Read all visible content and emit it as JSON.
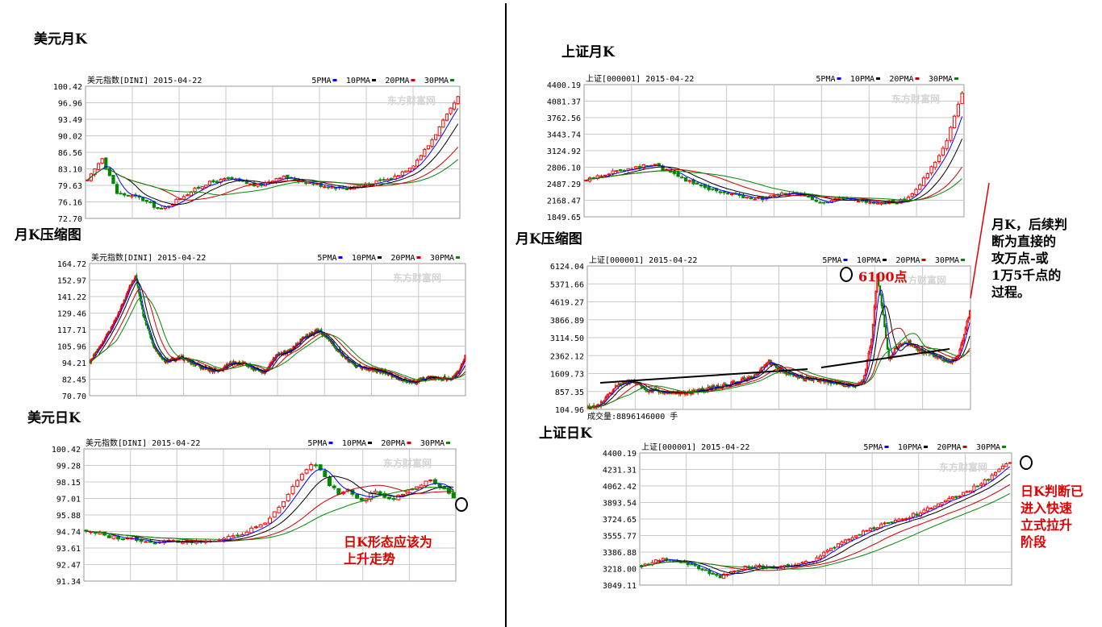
{
  "titles": {
    "t1": "美元月K",
    "t2": "月K压缩图",
    "t3": "美元日K",
    "t4": "上证月K",
    "t5": "月K压缩图",
    "t6": "上证日K"
  },
  "annotations": {
    "peak": "6100点",
    "monthly_note": "月K，后续判\n断为直接的\n攻万点-或\n1万5千点的\n过程。",
    "daily_note": "日K判断已\n进入快速\n立式拉升\n阶段",
    "usd_daily_note": "日K形态应该为\n上升走势"
  },
  "colors": {
    "up": "#ff0000",
    "down": "#008800",
    "ma5": "#0000ff",
    "ma10": "#000000",
    "ma20": "#cc0000",
    "ma30": "#008800",
    "grid": "#c8c8c8",
    "annotation": "#e00000"
  },
  "chart_data": [
    {
      "id": "c1",
      "type": "candlestick",
      "header": "美元指数[DINI] 2015-04-22",
      "legend": [
        "5PMA",
        "10PMA",
        "20PMA",
        "30PMA"
      ],
      "watermark": "东方财富网",
      "yticks": [
        "100.42",
        "96.96",
        "93.49",
        "90.02",
        "86.56",
        "83.10",
        "79.63",
        "76.16",
        "72.70"
      ],
      "ylim": [
        72.7,
        100.42
      ],
      "anchors": [
        [
          0,
          80.5
        ],
        [
          4,
          85.5
        ],
        [
          8,
          78
        ],
        [
          14,
          77
        ],
        [
          20,
          74.5
        ],
        [
          26,
          77.5
        ],
        [
          32,
          80
        ],
        [
          38,
          81
        ],
        [
          46,
          79.5
        ],
        [
          52,
          81.5
        ],
        [
          58,
          80.5
        ],
        [
          64,
          79.5
        ],
        [
          70,
          79
        ],
        [
          76,
          80
        ],
        [
          82,
          81
        ],
        [
          88,
          84
        ],
        [
          92,
          88
        ],
        [
          96,
          93
        ],
        [
          100,
          98
        ]
      ],
      "n": 101,
      "volume": ""
    },
    {
      "id": "c2",
      "type": "candlestick",
      "header": "美元指数[DINI] 2015-04-22",
      "legend": [
        "5PMA",
        "10PMA",
        "20PMA",
        "30PMA"
      ],
      "watermark": "东方财富网",
      "yticks": [
        "164.72",
        "152.97",
        "141.22",
        "129.46",
        "117.71",
        "105.96",
        "94.21",
        "82.45",
        "70.70"
      ],
      "ylim": [
        70.7,
        164.72
      ],
      "anchors": [
        [
          0,
          95
        ],
        [
          20,
          115
        ],
        [
          35,
          135
        ],
        [
          45,
          150
        ],
        [
          50,
          155
        ],
        [
          58,
          128
        ],
        [
          70,
          105
        ],
        [
          82,
          95
        ],
        [
          100,
          98
        ],
        [
          120,
          91
        ],
        [
          140,
          88
        ],
        [
          155,
          94
        ],
        [
          170,
          93
        ],
        [
          190,
          87
        ],
        [
          205,
          100
        ],
        [
          220,
          103
        ],
        [
          235,
          113
        ],
        [
          250,
          117
        ],
        [
          262,
          110
        ],
        [
          275,
          100
        ],
        [
          290,
          92
        ],
        [
          305,
          90
        ],
        [
          320,
          88
        ],
        [
          340,
          82
        ],
        [
          355,
          80
        ],
        [
          370,
          84
        ],
        [
          385,
          83
        ],
        [
          395,
          82
        ],
        [
          402,
          87
        ],
        [
          410,
          99
        ]
      ],
      "n": 411,
      "volume": ""
    },
    {
      "id": "c3",
      "type": "candlestick",
      "header": "美元指数[DINI] 2015-04-22",
      "legend": [
        "5PMA",
        "10PMA",
        "20PMA",
        "30PMA"
      ],
      "watermark": "东方财富网",
      "yticks": [
        "100.42",
        "99.28",
        "98.15",
        "97.01",
        "95.88",
        "94.74",
        "93.61",
        "92.47",
        "91.34"
      ],
      "ylim": [
        91.34,
        100.42
      ],
      "anchors": [
        [
          0,
          94.8
        ],
        [
          5,
          94.4
        ],
        [
          10,
          94.2
        ],
        [
          15,
          94.0
        ],
        [
          20,
          94.1
        ],
        [
          25,
          94.0
        ],
        [
          30,
          94.2
        ],
        [
          35,
          94.7
        ],
        [
          40,
          95.6
        ],
        [
          44,
          97.2
        ],
        [
          47,
          98.8
        ],
        [
          49,
          99.4
        ],
        [
          51,
          99.0
        ],
        [
          53,
          98.0
        ],
        [
          55,
          97.4
        ],
        [
          57,
          97.6
        ],
        [
          60,
          96.8
        ],
        [
          63,
          97.6
        ],
        [
          66,
          96.9
        ],
        [
          69,
          97.4
        ],
        [
          72,
          97.9
        ],
        [
          75,
          98.2
        ],
        [
          78,
          97.6
        ],
        [
          80,
          97.1
        ]
      ],
      "n": 81,
      "volume": ""
    },
    {
      "id": "c4",
      "type": "candlestick",
      "header": "上证[000001] 2015-04-22",
      "legend": [
        "5PMA",
        "10PMA",
        "20PMA",
        "30PMA"
      ],
      "watermark": "东方财富网",
      "yticks": [
        "4400.19",
        "4081.37",
        "3762.56",
        "3443.74",
        "3124.92",
        "2806.10",
        "2487.29",
        "2168.47",
        "1849.65"
      ],
      "ylim": [
        1849.65,
        4400.19
      ],
      "anchors": [
        [
          0,
          2550
        ],
        [
          6,
          2700
        ],
        [
          12,
          2800
        ],
        [
          18,
          2850
        ],
        [
          22,
          2700
        ],
        [
          28,
          2500
        ],
        [
          34,
          2350
        ],
        [
          40,
          2250
        ],
        [
          46,
          2200
        ],
        [
          52,
          2300
        ],
        [
          58,
          2250
        ],
        [
          62,
          2100
        ],
        [
          66,
          2200
        ],
        [
          70,
          2150
        ],
        [
          76,
          2100
        ],
        [
          82,
          2150
        ],
        [
          86,
          2350
        ],
        [
          90,
          2800
        ],
        [
          94,
          3300
        ],
        [
          96,
          3800
        ],
        [
          98,
          4250
        ]
      ],
      "n": 99,
      "volume": ""
    },
    {
      "id": "c5",
      "type": "candlestick",
      "header": "上证[000001] 2015-04-22",
      "legend": [
        "5PMA",
        "10PMA",
        "20PMA",
        "30PMA"
      ],
      "watermark": "东方财富网",
      "yticks": [
        "6124.04",
        "5371.66",
        "4619.27",
        "3866.89",
        "3114.50",
        "2362.12",
        "1609.73",
        "857.35",
        "104.96"
      ],
      "ylim": [
        104.96,
        6124.04
      ],
      "anchors": [
        [
          0,
          150
        ],
        [
          10,
          400
        ],
        [
          20,
          1100
        ],
        [
          30,
          1300
        ],
        [
          40,
          900
        ],
        [
          55,
          850
        ],
        [
          70,
          800
        ],
        [
          85,
          1000
        ],
        [
          100,
          1200
        ],
        [
          115,
          1500
        ],
        [
          125,
          2100
        ],
        [
          135,
          1700
        ],
        [
          150,
          1400
        ],
        [
          165,
          1300
        ],
        [
          175,
          1150
        ],
        [
          185,
          1050
        ],
        [
          190,
          1300
        ],
        [
          196,
          3000
        ],
        [
          200,
          5800
        ],
        [
          204,
          4000
        ],
        [
          208,
          2200
        ],
        [
          214,
          2800
        ],
        [
          222,
          2900
        ],
        [
          232,
          2500
        ],
        [
          242,
          2300
        ],
        [
          250,
          2100
        ],
        [
          256,
          2300
        ],
        [
          261,
          3500
        ],
        [
          264,
          4200
        ]
      ],
      "n": 265,
      "volume": "成交量:8896146000 手"
    },
    {
      "id": "c6",
      "type": "candlestick",
      "header": "上证[000001] 2015-04-22",
      "legend": [
        "5PMA",
        "10PMA",
        "20PMA",
        "30PMA"
      ],
      "watermark": "东方财富网",
      "yticks": [
        "4400.19",
        "4231.31",
        "4062.42",
        "3893.54",
        "3724.65",
        "3555.77",
        "3386.88",
        "3218.00",
        "3049.11"
      ],
      "ylim": [
        3049.11,
        4400.19
      ],
      "anchors": [
        [
          0,
          3250
        ],
        [
          6,
          3320
        ],
        [
          12,
          3280
        ],
        [
          18,
          3200
        ],
        [
          22,
          3130
        ],
        [
          26,
          3190
        ],
        [
          30,
          3240
        ],
        [
          36,
          3230
        ],
        [
          42,
          3260
        ],
        [
          48,
          3300
        ],
        [
          54,
          3440
        ],
        [
          60,
          3560
        ],
        [
          66,
          3650
        ],
        [
          72,
          3720
        ],
        [
          78,
          3790
        ],
        [
          84,
          3890
        ],
        [
          90,
          3990
        ],
        [
          96,
          4110
        ],
        [
          100,
          4220
        ],
        [
          103,
          4310
        ]
      ],
      "n": 104,
      "volume": ""
    }
  ]
}
